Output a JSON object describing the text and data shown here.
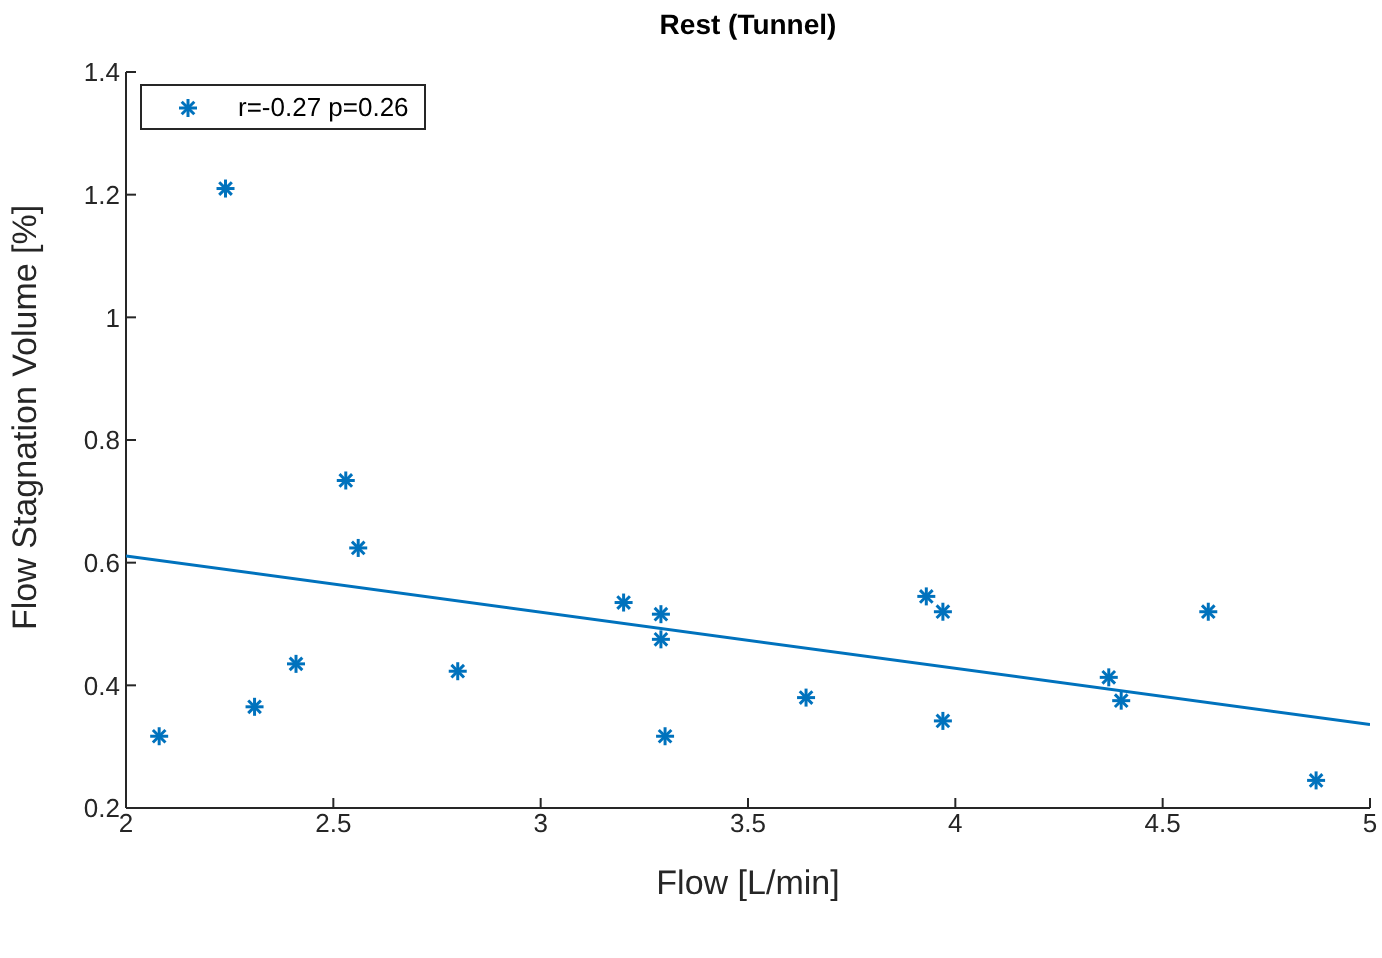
{
  "chart_data": {
    "type": "scatter",
    "title": "Rest (Tunnel)",
    "xlabel": "Flow [L/min]",
    "ylabel": "Flow Stagnation Volume [%]",
    "xlim": [
      2,
      5
    ],
    "xticks": [
      2,
      2.5,
      3,
      3.5,
      4,
      4.5,
      5
    ],
    "ylim": [
      0.2,
      1.4
    ],
    "yticks": [
      0.2,
      0.4,
      0.6,
      0.8,
      1,
      1.2,
      1.4
    ],
    "grid": false,
    "legend": "top left",
    "series": [
      {
        "name": "r=-0.27 p=0.26",
        "marker": "cross",
        "color": "#0072bd",
        "x": [
          2.08,
          2.24,
          2.31,
          2.41,
          2.53,
          2.56,
          2.8,
          3.2,
          3.29,
          3.29,
          3.3,
          3.64,
          3.93,
          3.97,
          3.97,
          4.37,
          4.4,
          4.61,
          4.87
        ],
        "values": [
          0.317,
          1.21,
          0.365,
          0.435,
          0.734,
          0.624,
          0.423,
          0.535,
          0.516,
          0.475,
          0.317,
          0.38,
          0.545,
          0.52,
          0.342,
          0.413,
          0.375,
          0.52,
          0.245
        ]
      },
      {
        "type": "line",
        "marker": "none",
        "color": "#0072bd",
        "line_style": "solid",
        "x": [
          2,
          5
        ],
        "values": [
          0.611,
          0.336
        ]
      }
    ]
  }
}
